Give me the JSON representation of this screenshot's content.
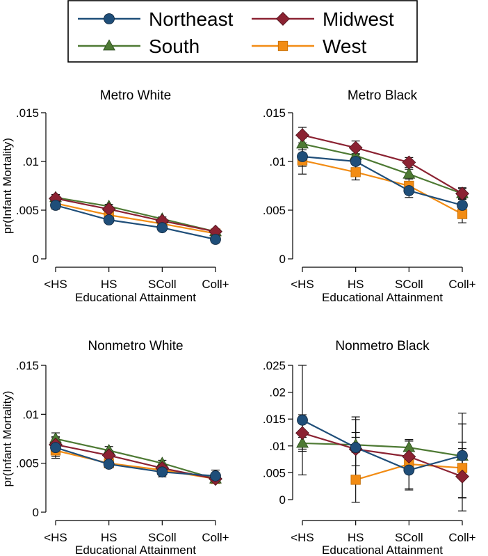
{
  "legend": [
    {
      "name": "Northeast",
      "color": "#1f4e79",
      "marker": "circle"
    },
    {
      "name": "Midwest",
      "color": "#8b2232",
      "marker": "diamond"
    },
    {
      "name": "South",
      "color": "#4e7a34",
      "marker": "triangle"
    },
    {
      "name": "West",
      "color": "#f28c14",
      "marker": "square"
    }
  ],
  "chart_data": [
    {
      "type": "line",
      "title": "Metro White",
      "xlabel": "Educational Attainment",
      "ylabel": "pr(Infant Mortality)",
      "categories": [
        "<HS",
        "HS",
        "SColl",
        "Coll+"
      ],
      "ylim": [
        0,
        0.015
      ],
      "yticks": [
        0,
        0.005,
        0.01,
        0.015
      ],
      "ytick_labels": [
        "0",
        ".005",
        ".01",
        ".015"
      ],
      "series": [
        {
          "name": "Northeast",
          "values": [
            0.0055,
            0.004,
            0.0032,
            0.002
          ],
          "lower": [
            0.0051,
            0.0037,
            0.003,
            0.0018
          ],
          "upper": [
            0.0059,
            0.0043,
            0.0034,
            0.0022
          ]
        },
        {
          "name": "Midwest",
          "values": [
            0.0062,
            0.0051,
            0.0039,
            0.0028
          ],
          "lower": [
            0.0059,
            0.0048,
            0.0037,
            0.0026
          ],
          "upper": [
            0.0066,
            0.0054,
            0.0041,
            0.003
          ]
        },
        {
          "name": "South",
          "values": [
            0.0063,
            0.0054,
            0.0041,
            0.0028
          ],
          "lower": [
            0.006,
            0.0052,
            0.0039,
            0.0026
          ],
          "upper": [
            0.0066,
            0.0056,
            0.0043,
            0.003
          ]
        },
        {
          "name": "West",
          "values": [
            0.0057,
            0.0045,
            0.0036,
            0.0026
          ],
          "lower": [
            0.0053,
            0.0042,
            0.0034,
            0.0024
          ],
          "upper": [
            0.0061,
            0.0048,
            0.0038,
            0.0028
          ]
        }
      ]
    },
    {
      "type": "line",
      "title": "Metro Black",
      "xlabel": "Educational Attainment",
      "ylabel": "",
      "categories": [
        "<HS",
        "HS",
        "SColl",
        "Coll+"
      ],
      "ylim": [
        0,
        0.015
      ],
      "yticks": [
        0,
        0.005,
        0.01,
        0.015
      ],
      "ytick_labels": [
        "0",
        ".005",
        ".01",
        ".015"
      ],
      "series": [
        {
          "name": "Northeast",
          "values": [
            0.0105,
            0.01,
            0.007,
            0.0055
          ],
          "lower": [
            0.0095,
            0.0092,
            0.0063,
            0.0048
          ],
          "upper": [
            0.0115,
            0.0108,
            0.0077,
            0.0062
          ]
        },
        {
          "name": "Midwest",
          "values": [
            0.0127,
            0.0114,
            0.0099,
            0.0067
          ],
          "lower": [
            0.0119,
            0.0107,
            0.0094,
            0.0061
          ],
          "upper": [
            0.0135,
            0.0121,
            0.0104,
            0.0073
          ]
        },
        {
          "name": "South",
          "values": [
            0.0118,
            0.0106,
            0.0087,
            0.0067
          ],
          "lower": [
            0.0112,
            0.0101,
            0.0082,
            0.0062
          ],
          "upper": [
            0.0124,
            0.0111,
            0.0092,
            0.0072
          ]
        },
        {
          "name": "West",
          "values": [
            0.0101,
            0.0089,
            0.0075,
            0.0046
          ],
          "lower": [
            0.0087,
            0.0081,
            0.0067,
            0.0037
          ],
          "upper": [
            0.0114,
            0.0097,
            0.0083,
            0.0055
          ]
        }
      ]
    },
    {
      "type": "line",
      "title": "Nonmetro White",
      "xlabel": "Educational Attainment",
      "ylabel": "pr(Infant Mortality)",
      "categories": [
        "<HS",
        "HS",
        "SColl",
        "Coll+"
      ],
      "ylim": [
        0,
        0.015
      ],
      "yticks": [
        0,
        0.005,
        0.01,
        0.015
      ],
      "ytick_labels": [
        "0",
        ".005",
        ".01",
        ".015"
      ],
      "series": [
        {
          "name": "Northeast",
          "values": [
            0.0066,
            0.0049,
            0.0041,
            0.0037
          ],
          "lower": [
            0.0055,
            0.0046,
            0.0036,
            0.0031
          ],
          "upper": [
            0.0077,
            0.0052,
            0.0046,
            0.0043
          ]
        },
        {
          "name": "Midwest",
          "values": [
            0.0069,
            0.0058,
            0.0045,
            0.0034
          ],
          "lower": [
            0.0062,
            0.0053,
            0.0041,
            0.003
          ],
          "upper": [
            0.0076,
            0.0063,
            0.0049,
            0.0038
          ]
        },
        {
          "name": "South",
          "values": [
            0.0075,
            0.0063,
            0.005,
            0.0034
          ],
          "lower": [
            0.0069,
            0.0059,
            0.0047,
            0.0031
          ],
          "upper": [
            0.0081,
            0.0067,
            0.0053,
            0.0037
          ]
        },
        {
          "name": "West",
          "values": [
            0.0063,
            0.005,
            0.0043,
            0.0034
          ],
          "lower": [
            0.0057,
            0.0046,
            0.004,
            0.0031
          ],
          "upper": [
            0.0069,
            0.0054,
            0.0046,
            0.0037
          ]
        }
      ]
    },
    {
      "type": "line",
      "title": "Nonmetro Black",
      "xlabel": "Educational Attainment",
      "ylabel": "",
      "categories": [
        "<HS",
        "HS",
        "SColl",
        "Coll+"
      ],
      "ylim": [
        0,
        0.025
      ],
      "yticks": [
        0,
        0.005,
        0.01,
        0.015,
        0.02,
        0.025
      ],
      "ytick_labels": [
        "0",
        ".005",
        ".01",
        ".015",
        ".02",
        ".025"
      ],
      "series": [
        {
          "name": "Northeast",
          "values": [
            0.0148,
            0.0097,
            0.0055,
            0.0082
          ],
          "lower": [
            0.0046,
            0.0045,
            0.0018,
            0.0003
          ],
          "upper": [
            0.025,
            0.0149,
            0.0092,
            0.0161
          ]
        },
        {
          "name": "Midwest",
          "values": [
            0.0124,
            0.0094,
            0.008,
            0.0043
          ],
          "lower": [
            0.009,
            0.0063,
            0.0051,
            -0.0021
          ],
          "upper": [
            0.0158,
            0.0125,
            0.0109,
            0.0107
          ]
        },
        {
          "name": "South",
          "values": [
            0.0105,
            0.0102,
            0.0097,
            0.0081
          ],
          "lower": [
            0.0094,
            0.0088,
            0.0085,
            0.0067
          ],
          "upper": [
            0.0116,
            0.0116,
            0.0109,
            0.0095
          ]
        },
        {
          "name": "West",
          "values": [
            null,
            0.0037,
            0.0066,
            0.0059
          ],
          "lower": [
            null,
            -0.0005,
            0.002,
            0.0004
          ],
          "upper": [
            null,
            0.0154,
            0.0112,
            0.0141
          ]
        }
      ]
    }
  ]
}
